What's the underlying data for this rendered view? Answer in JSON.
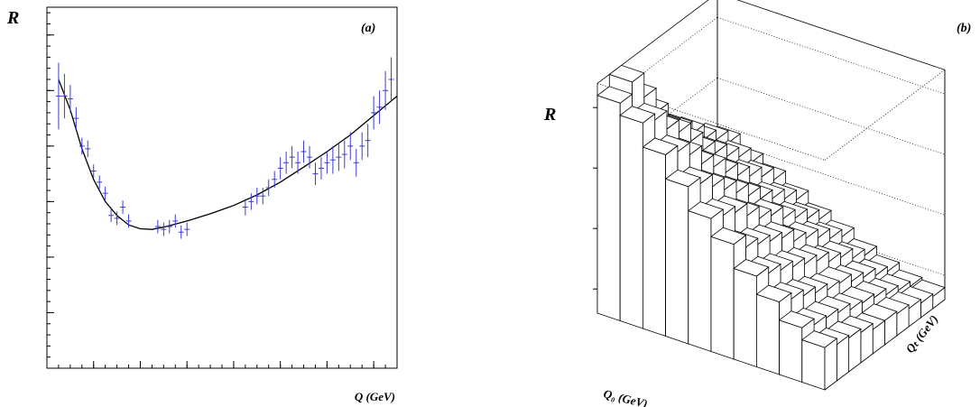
{
  "chart_data": [
    {
      "type": "scatter",
      "panel_label": "(a)",
      "xlabel": "Q (GeV)",
      "ylabel": "R",
      "xlim": [
        0,
        1.5
      ],
      "ylim": [
        0.5,
        1.15
      ],
      "x_ticks": [
        "0",
        "0.2",
        "0.4",
        "0.6",
        "0.8",
        "1",
        "1.2",
        "1.4"
      ],
      "x_tick_values": [
        0,
        0.2,
        0.4,
        0.6,
        0.8,
        1.0,
        1.2,
        1.4
      ],
      "y_ticks": [
        "0.5",
        "0.6",
        "0.7",
        "0.8",
        "0.9",
        "1",
        "1.1"
      ],
      "y_tick_values": [
        0.5,
        0.6,
        0.7,
        0.8,
        0.9,
        1.0,
        1.1
      ],
      "grid": false,
      "colors": {
        "points": "#3a3ad6",
        "fit": "#000000"
      },
      "series": [
        {
          "kind": "points_with_errors",
          "x": [
            0.05,
            0.075,
            0.1,
            0.125,
            0.15,
            0.175,
            0.2,
            0.225,
            0.25,
            0.275,
            0.3,
            0.325,
            0.35,
            0.475,
            0.5,
            0.525,
            0.55,
            0.575,
            0.6,
            0.85,
            0.875,
            0.9,
            0.925,
            0.95,
            0.975,
            1.0,
            1.025,
            1.05,
            1.075,
            1.1,
            1.125,
            1.15,
            1.175,
            1.2,
            1.225,
            1.25,
            1.275,
            1.3,
            1.325,
            1.35,
            1.375,
            1.4,
            1.425,
            1.45,
            1.475
          ],
          "y": [
            0.99,
            0.99,
            0.985,
            0.95,
            0.9,
            0.895,
            0.855,
            0.835,
            0.815,
            0.775,
            0.77,
            0.79,
            0.765,
            0.755,
            0.75,
            0.755,
            0.765,
            0.745,
            0.75,
            0.79,
            0.8,
            0.81,
            0.81,
            0.825,
            0.84,
            0.86,
            0.87,
            0.88,
            0.87,
            0.89,
            0.88,
            0.85,
            0.86,
            0.87,
            0.875,
            0.88,
            0.885,
            0.9,
            0.87,
            0.9,
            0.91,
            0.96,
            0.97,
            1.0,
            1.02
          ],
          "yerr": [
            0.06,
            0.04,
            0.025,
            0.02,
            0.015,
            0.015,
            0.012,
            0.012,
            0.012,
            0.012,
            0.012,
            0.012,
            0.012,
            0.012,
            0.012,
            0.012,
            0.012,
            0.012,
            0.012,
            0.015,
            0.015,
            0.015,
            0.015,
            0.015,
            0.015,
            0.02,
            0.02,
            0.02,
            0.02,
            0.02,
            0.02,
            0.02,
            0.02,
            0.02,
            0.025,
            0.025,
            0.025,
            0.025,
            0.025,
            0.025,
            0.03,
            0.03,
            0.03,
            0.035,
            0.04
          ]
        },
        {
          "kind": "fit_curve",
          "x": [
            0.05,
            0.1,
            0.15,
            0.2,
            0.25,
            0.3,
            0.35,
            0.4,
            0.45,
            0.5,
            0.6,
            0.7,
            0.8,
            0.9,
            1.0,
            1.1,
            1.2,
            1.3,
            1.4,
            1.5
          ],
          "y": [
            1.02,
            0.965,
            0.895,
            0.84,
            0.8,
            0.775,
            0.758,
            0.751,
            0.75,
            0.754,
            0.765,
            0.778,
            0.793,
            0.812,
            0.835,
            0.862,
            0.89,
            0.92,
            0.955,
            0.99
          ]
        }
      ]
    },
    {
      "type": "bar3d",
      "panel_label": "(b)",
      "zlabel": "R",
      "x_axis_label": "Q₀ (GeV)",
      "y_axis_label": "Qₜ (GeV)",
      "xlim": [
        0,
        1
      ],
      "ylim": [
        0,
        1
      ],
      "zlim": [
        0.13,
        0.32
      ],
      "x_ticks": [
        "0",
        "0.2",
        "0.4",
        "0.6",
        "0.8",
        "1"
      ],
      "y_ticks": [
        "0",
        "0.2",
        "0.4",
        "0.6",
        "0.8",
        "1"
      ],
      "z_ticks": [
        "0.15",
        "0.2",
        "0.25",
        "0.3"
      ],
      "z_tick_values": [
        0.15,
        0.2,
        0.25,
        0.3
      ],
      "grid_size": 10,
      "heights": [
        [
          0.31,
          0.3,
          0.28,
          0.26,
          0.24,
          0.225,
          0.205,
          0.19,
          0.175,
          0.165
        ],
        [
          0.32,
          0.295,
          0.275,
          0.255,
          0.235,
          0.215,
          0.2,
          0.185,
          0.17,
          0.16
        ],
        [
          0.3,
          0.28,
          0.265,
          0.245,
          0.23,
          0.21,
          0.195,
          0.18,
          0.168,
          0.158
        ],
        [
          0.28,
          0.27,
          0.25,
          0.235,
          0.22,
          0.205,
          0.19,
          0.175,
          0.165,
          0.155
        ],
        [
          0.26,
          0.255,
          0.24,
          0.225,
          0.21,
          0.2,
          0.185,
          0.17,
          0.16,
          0.15
        ],
        [
          0.25,
          0.24,
          0.228,
          0.215,
          0.205,
          0.19,
          0.18,
          0.168,
          0.158,
          0.15
        ],
        [
          0.24,
          0.23,
          0.218,
          0.205,
          0.195,
          0.185,
          0.172,
          0.162,
          0.155,
          0.148
        ],
        [
          0.228,
          0.22,
          0.21,
          0.198,
          0.188,
          0.178,
          0.168,
          0.158,
          0.15,
          0.145
        ],
        [
          0.22,
          0.212,
          0.202,
          0.19,
          0.18,
          0.17,
          0.16,
          0.152,
          0.146,
          0.142
        ],
        [
          0.21,
          0.2,
          0.192,
          0.182,
          0.172,
          0.164,
          0.155,
          0.148,
          0.142,
          0.14
        ]
      ]
    }
  ]
}
